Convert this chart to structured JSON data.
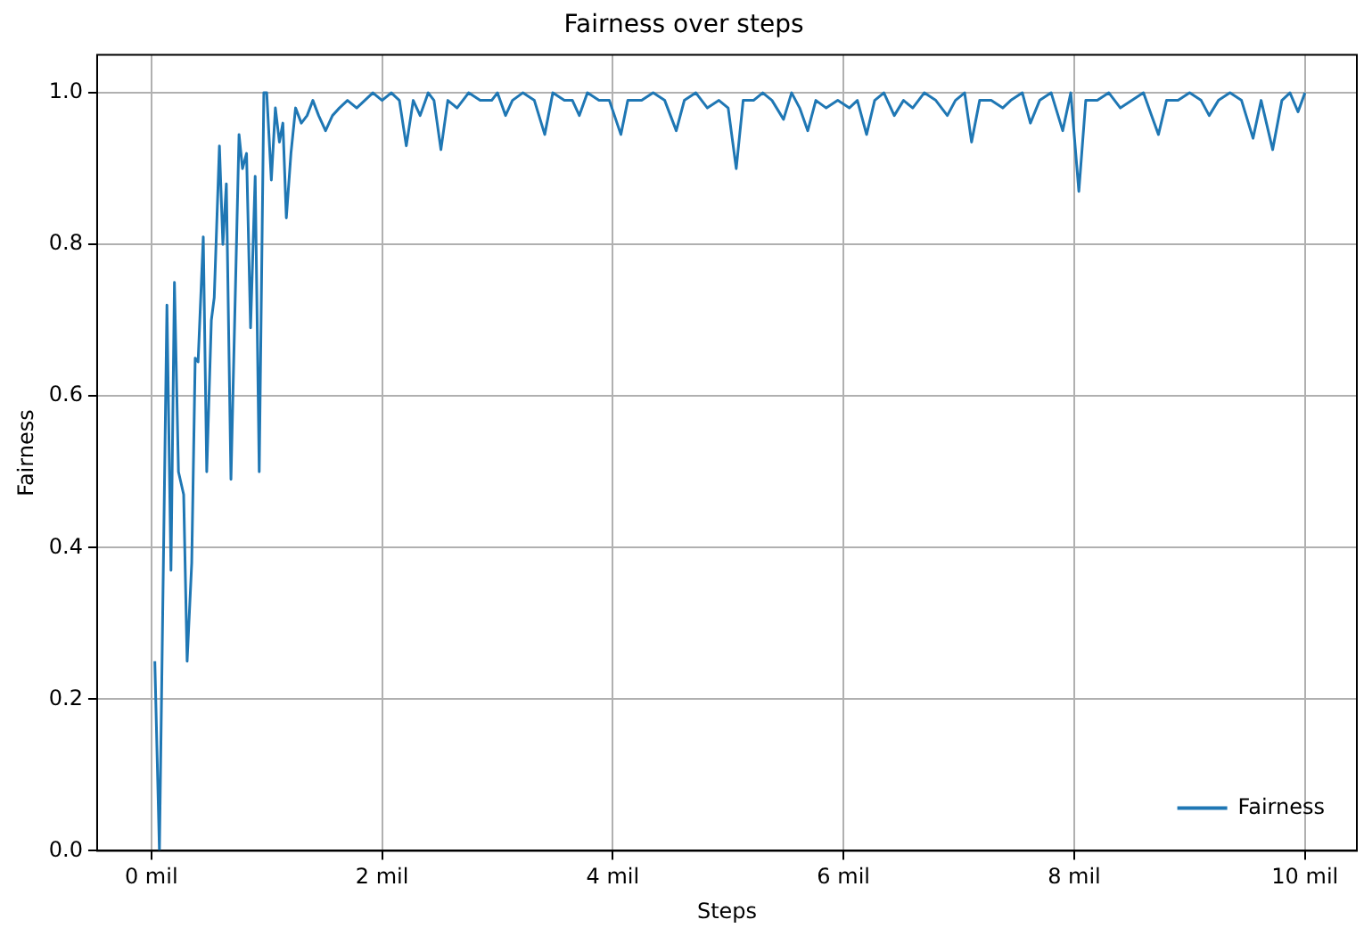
{
  "chart_data": {
    "type": "line",
    "title": "Fairness over steps",
    "xlabel": "Steps",
    "ylabel": "Fairness",
    "xlim": [
      -0.47,
      10.45
    ],
    "ylim": [
      0,
      1.05
    ],
    "xticks": [
      {
        "value": 0,
        "label": "0 mil"
      },
      {
        "value": 2,
        "label": "2 mil"
      },
      {
        "value": 4,
        "label": "4 mil"
      },
      {
        "value": 6,
        "label": "6 mil"
      },
      {
        "value": 8,
        "label": "8 mil"
      },
      {
        "value": 10,
        "label": "10 mil"
      }
    ],
    "yticks": [
      {
        "value": 0,
        "label": "0.0"
      },
      {
        "value": 0.2,
        "label": "0.2"
      },
      {
        "value": 0.4,
        "label": "0.4"
      },
      {
        "value": 0.6,
        "label": "0.6"
      },
      {
        "value": 0.8,
        "label": "0.8"
      },
      {
        "value": 1,
        "label": "1.0"
      }
    ],
    "grid": true,
    "legend": "bottom right",
    "marker": "none",
    "line_style": "solid",
    "series": [
      {
        "name": "Fairness",
        "color": "#1f77b4",
        "x": [
          0.03,
          0.07,
          0.135,
          0.17,
          0.2,
          0.235,
          0.28,
          0.31,
          0.35,
          0.38,
          0.405,
          0.45,
          0.48,
          0.52,
          0.545,
          0.59,
          0.62,
          0.65,
          0.69,
          0.76,
          0.79,
          0.825,
          0.86,
          0.9,
          0.935,
          0.975,
          1.0,
          1.04,
          1.075,
          1.11,
          1.14,
          1.17,
          1.21,
          1.25,
          1.3,
          1.35,
          1.4,
          1.45,
          1.51,
          1.57,
          1.63,
          1.7,
          1.78,
          1.85,
          1.92,
          2.0,
          2.08,
          2.15,
          2.21,
          2.27,
          2.33,
          2.4,
          2.45,
          2.51,
          2.57,
          2.65,
          2.75,
          2.85,
          2.95,
          3.0,
          3.07,
          3.13,
          3.22,
          3.32,
          3.41,
          3.48,
          3.58,
          3.65,
          3.71,
          3.78,
          3.88,
          3.97,
          4.07,
          4.13,
          4.25,
          4.35,
          4.45,
          4.55,
          4.62,
          4.72,
          4.82,
          4.92,
          5.0,
          5.07,
          5.13,
          5.22,
          5.3,
          5.38,
          5.48,
          5.55,
          5.62,
          5.69,
          5.76,
          5.85,
          5.95,
          6.05,
          6.12,
          6.2,
          6.27,
          6.35,
          6.44,
          6.52,
          6.6,
          6.7,
          6.8,
          6.9,
          6.97,
          7.05,
          7.11,
          7.18,
          7.28,
          7.38,
          7.45,
          7.55,
          7.62,
          7.7,
          7.8,
          7.9,
          7.97,
          8.04,
          8.1,
          8.2,
          8.3,
          8.4,
          8.5,
          8.6,
          8.67,
          8.73,
          8.8,
          8.9,
          9.0,
          9.1,
          9.17,
          9.25,
          9.35,
          9.45,
          9.55,
          9.62,
          9.72,
          9.8,
          9.87,
          9.94,
          10.0
        ],
        "values": [
          0.25,
          0.0,
          0.72,
          0.37,
          0.75,
          0.5,
          0.47,
          0.25,
          0.38,
          0.65,
          0.645,
          0.81,
          0.5,
          0.7,
          0.73,
          0.93,
          0.8,
          0.88,
          0.49,
          0.945,
          0.9,
          0.92,
          0.69,
          0.89,
          0.5,
          1.0,
          1.0,
          0.885,
          0.98,
          0.935,
          0.96,
          0.835,
          0.92,
          0.98,
          0.96,
          0.97,
          0.99,
          0.97,
          0.95,
          0.97,
          0.98,
          0.99,
          0.98,
          0.99,
          1.0,
          0.99,
          1.0,
          0.99,
          0.93,
          0.99,
          0.97,
          1.0,
          0.99,
          0.925,
          0.99,
          0.98,
          1.0,
          0.99,
          0.99,
          1.0,
          0.97,
          0.99,
          1.0,
          0.99,
          0.945,
          1.0,
          0.99,
          0.99,
          0.97,
          1.0,
          0.99,
          0.99,
          0.945,
          0.99,
          0.99,
          1.0,
          0.99,
          0.95,
          0.99,
          1.0,
          0.98,
          0.99,
          0.98,
          0.9,
          0.99,
          0.99,
          1.0,
          0.99,
          0.965,
          1.0,
          0.98,
          0.95,
          0.99,
          0.98,
          0.99,
          0.98,
          0.99,
          0.945,
          0.99,
          1.0,
          0.97,
          0.99,
          0.98,
          1.0,
          0.99,
          0.97,
          0.99,
          1.0,
          0.935,
          0.99,
          0.99,
          0.98,
          0.99,
          1.0,
          0.96,
          0.99,
          1.0,
          0.95,
          1.0,
          0.87,
          0.99,
          0.99,
          1.0,
          0.98,
          0.99,
          1.0,
          0.97,
          0.945,
          0.99,
          0.99,
          1.0,
          0.99,
          0.97,
          0.99,
          1.0,
          0.99,
          0.94,
          0.99,
          0.925,
          0.99,
          1.0,
          0.975,
          1.0
        ]
      }
    ]
  }
}
